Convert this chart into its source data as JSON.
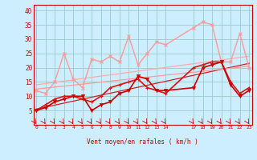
{
  "background_color": "#cceeff",
  "grid_color": "#99cccc",
  "ylabel_text": "Vent moyen/en rafales ( km/h )",
  "ylim": [
    0,
    42
  ],
  "yticks": [
    5,
    10,
    15,
    20,
    25,
    30,
    35,
    40
  ],
  "xlim": [
    -0.3,
    23.3
  ],
  "x_positions": [
    0,
    1,
    2,
    3,
    4,
    5,
    6,
    7,
    8,
    9,
    10,
    11,
    12,
    13,
    14,
    17,
    18,
    19,
    20,
    21,
    22,
    23
  ],
  "x_labels": [
    "0",
    "1",
    "2",
    "3",
    "4",
    "5",
    "6",
    "7",
    "8",
    "9",
    "10",
    "11",
    "12",
    "13",
    "14",
    "17",
    "18",
    "19",
    "20",
    "21",
    "22",
    "23"
  ],
  "trend1_x": [
    0,
    23
  ],
  "trend1_y": [
    5.5,
    21.5
  ],
  "trend1_color": "#cc2222",
  "trend1_lw": 0.9,
  "trend2_x": [
    0,
    23
  ],
  "trend2_y": [
    12.5,
    20.5
  ],
  "trend2_color": "#ff9999",
  "trend2_lw": 0.9,
  "trend3_x": [
    0,
    23
  ],
  "trend3_y": [
    14.0,
    24.0
  ],
  "trend3_color": "#ffaaaa",
  "trend3_lw": 0.9,
  "rafales_x": [
    0,
    1,
    2,
    3,
    4,
    5,
    6,
    7,
    8,
    9,
    10,
    11,
    12,
    13,
    14,
    17,
    18,
    19,
    20,
    21,
    22,
    23
  ],
  "rafales_y": [
    12,
    11,
    15,
    25,
    16,
    13,
    23,
    22,
    24,
    22,
    31,
    21,
    25,
    29,
    28,
    34,
    36,
    35,
    22,
    22,
    32,
    20
  ],
  "rafales_color": "#ff9999",
  "rafales_lw": 1.0,
  "moyen1_x": [
    0,
    1,
    2,
    3,
    4,
    5,
    6,
    7,
    8,
    9,
    10,
    11,
    12,
    13,
    14,
    17,
    18,
    19,
    20,
    21,
    22,
    23
  ],
  "moyen1_y": [
    5,
    6,
    8,
    9,
    10,
    10,
    5,
    7,
    8,
    11,
    12,
    17,
    16,
    12,
    12,
    13,
    20,
    21,
    22,
    14,
    10,
    12
  ],
  "moyen1_color": "#cc0000",
  "moyen1_lw": 1.2,
  "moyen2_x": [
    0,
    1,
    2,
    3,
    4,
    5,
    6,
    7,
    8,
    9,
    10,
    11,
    12,
    13,
    14,
    17,
    18,
    19,
    20,
    21,
    22,
    23
  ],
  "moyen2_y": [
    5,
    7,
    9,
    10,
    10,
    9,
    8,
    10,
    13,
    14,
    15,
    16,
    13,
    12,
    11,
    20,
    21,
    22,
    22,
    15,
    11,
    13
  ],
  "moyen2_color": "#dd1111",
  "moyen2_lw": 1.2,
  "arrow_color": "#cc0000",
  "spine_color": "#cc0000"
}
